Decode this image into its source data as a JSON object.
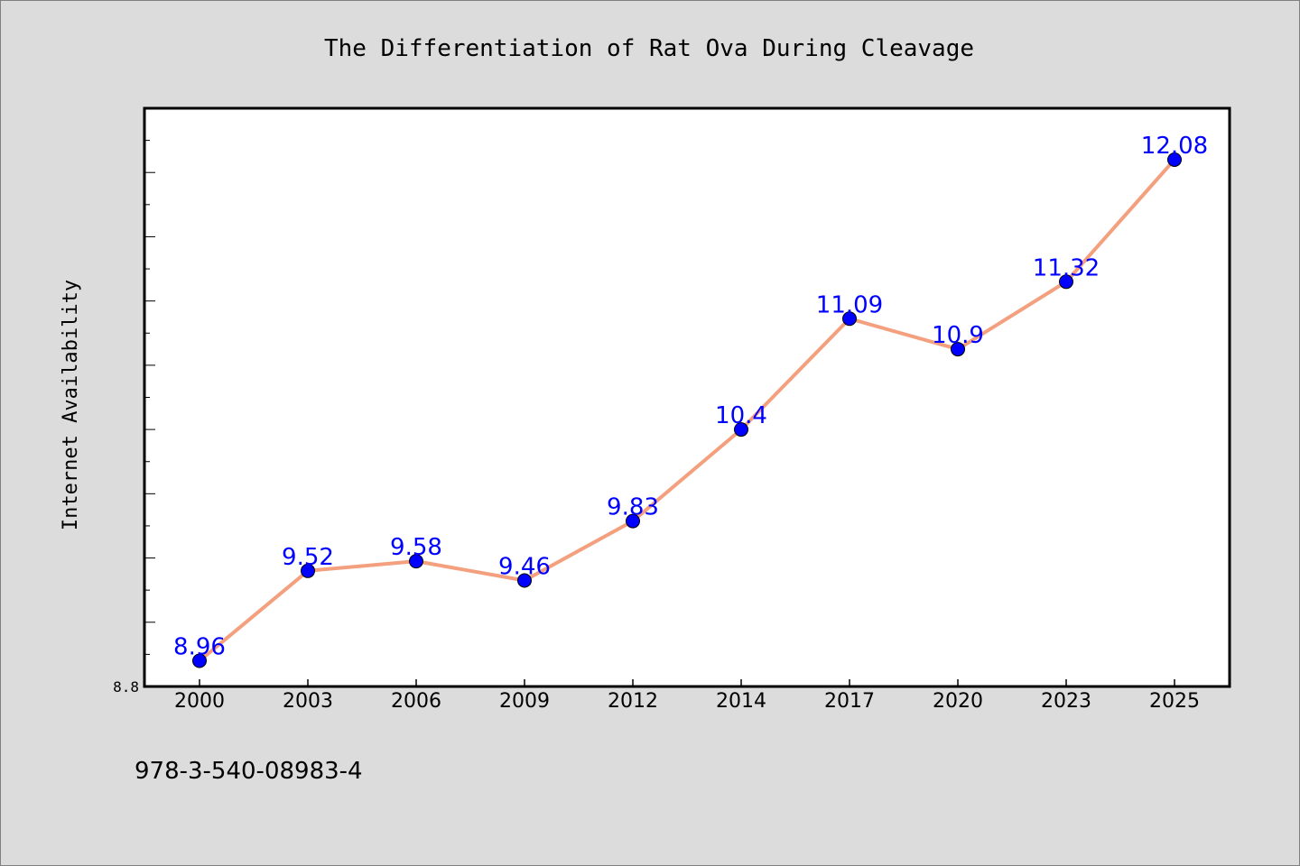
{
  "chart_data": {
    "type": "line",
    "title": "The Differentiation of Rat Ova During Cleavage",
    "ylabel": "Internet Availability",
    "xlabel": "",
    "categories": [
      "2000",
      "2003",
      "2006",
      "2009",
      "2012",
      "2014",
      "2017",
      "2020",
      "2023",
      "2025"
    ],
    "series": [
      {
        "values": [
          8.96,
          9.52,
          9.58,
          9.46,
          9.83,
          10.4,
          11.09,
          10.9,
          11.32,
          12.08
        ]
      }
    ],
    "data_labels": [
      "8.96",
      "9.52",
      "9.58",
      "9.46",
      "9.83",
      "10.4",
      "11.09",
      "10.9",
      "11.32",
      "12.08"
    ],
    "ylim": [
      8.8,
      12.4
    ],
    "ytick_labels": [
      "8.8"
    ],
    "grid": false,
    "line_color": "#f4a07e",
    "marker_color": "#0000ff",
    "label_color": "#0000ff"
  },
  "footer": {
    "text": "978-3-540-08983-4"
  }
}
